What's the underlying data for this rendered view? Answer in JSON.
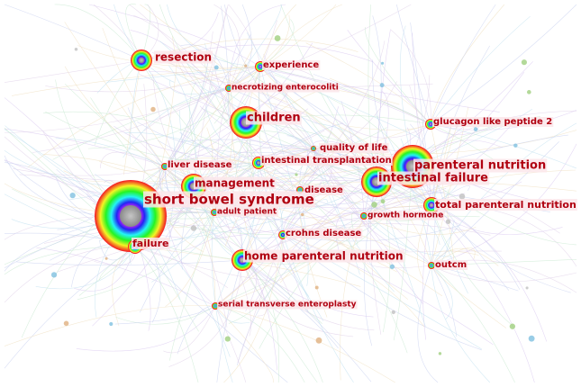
{
  "nodes": [
    {
      "label": "short bowel syndrome"
    },
    {
      "label": "resection"
    },
    {
      "label": "experience"
    },
    {
      "label": "necrotizing enterocoliti"
    },
    {
      "label": "children"
    },
    {
      "label": "glucagon like peptide 2"
    },
    {
      "label": "quality of life"
    },
    {
      "label": "intestinal transplantation"
    },
    {
      "label": "liver disease"
    },
    {
      "label": "parenteral nutrition"
    },
    {
      "label": "intestinal failure"
    },
    {
      "label": "management"
    },
    {
      "label": "disease"
    },
    {
      "label": "total parenteral nutrition"
    },
    {
      "label": "adult patient"
    },
    {
      "label": "growth hormone"
    },
    {
      "label": "crohns disease"
    },
    {
      "label": "failure"
    },
    {
      "label": "home parenteral nutrition"
    },
    {
      "label": "outcm"
    },
    {
      "label": "serial transverse enteroplasty"
    }
  ]
}
